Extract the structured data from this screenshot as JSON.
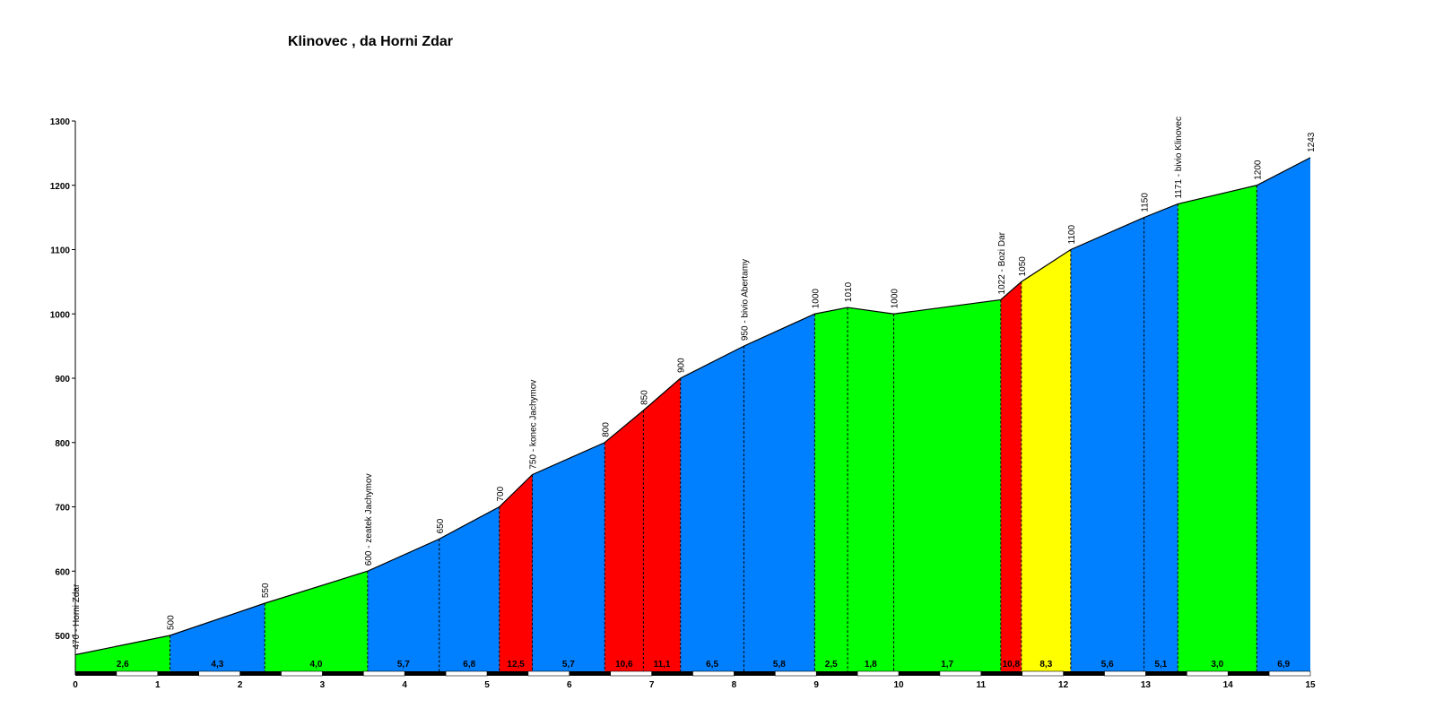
{
  "chart_data": {
    "type": "area",
    "title": "Klinovec , da Horni Zdar",
    "xlabel": "",
    "ylabel": "",
    "xlim": [
      0,
      15
    ],
    "ylim": [
      450,
      1300
    ],
    "x_ticks": [
      "0",
      "1",
      "2",
      "3",
      "4",
      "5",
      "6",
      "7",
      "8",
      "9",
      "10",
      "11",
      "12",
      "13",
      "14",
      "15"
    ],
    "y_ticks": [
      "500",
      "600",
      "700",
      "800",
      "900",
      "1000",
      "1100",
      "1200",
      "1300"
    ],
    "profile": [
      {
        "km": 0.0,
        "alt": 470,
        "label": "470 - Horni Zdar"
      },
      {
        "km": 1.15,
        "alt": 500,
        "label": "500"
      },
      {
        "km": 2.3,
        "alt": 550,
        "label": "550"
      },
      {
        "km": 3.55,
        "alt": 600,
        "label": "600 - zeatek Jachymov"
      },
      {
        "km": 4.42,
        "alt": 650,
        "label": "650"
      },
      {
        "km": 5.15,
        "alt": 700,
        "label": "700"
      },
      {
        "km": 5.55,
        "alt": 750,
        "label": "750 - konec Jachymov"
      },
      {
        "km": 6.43,
        "alt": 800,
        "label": "800"
      },
      {
        "km": 6.9,
        "alt": 850,
        "label": "850"
      },
      {
        "km": 7.35,
        "alt": 900,
        "label": "900"
      },
      {
        "km": 8.12,
        "alt": 950,
        "label": "950 - bivio Abertamy"
      },
      {
        "km": 8.98,
        "alt": 1000,
        "label": "1000"
      },
      {
        "km": 9.38,
        "alt": 1010,
        "label": "1010"
      },
      {
        "km": 9.94,
        "alt": 1000,
        "label": "1000"
      },
      {
        "km": 11.24,
        "alt": 1022,
        "label": "1022 - Bozi Dar"
      },
      {
        "km": 11.49,
        "alt": 1050,
        "label": "1050"
      },
      {
        "km": 12.09,
        "alt": 1100,
        "label": "1100"
      },
      {
        "km": 12.98,
        "alt": 1150,
        "label": "1150"
      },
      {
        "km": 13.39,
        "alt": 1171,
        "label": "1171 - bivio Klinovec"
      },
      {
        "km": 14.35,
        "alt": 1200,
        "label": "1200"
      },
      {
        "km": 15.0,
        "alt": 1243,
        "label": "1243"
      }
    ],
    "segments": [
      {
        "grade": "2,6",
        "color": "#00ff00"
      },
      {
        "grade": "4,3",
        "color": "#0080ff"
      },
      {
        "grade": "4,0",
        "color": "#00ff00"
      },
      {
        "grade": "5,7",
        "color": "#0080ff"
      },
      {
        "grade": "6,8",
        "color": "#0080ff"
      },
      {
        "grade": "12,5",
        "color": "#ff0000"
      },
      {
        "grade": "5,7",
        "color": "#0080ff"
      },
      {
        "grade": "10,6",
        "color": "#ff0000"
      },
      {
        "grade": "11,1",
        "color": "#ff0000"
      },
      {
        "grade": "6,5",
        "color": "#0080ff"
      },
      {
        "grade": "5,8",
        "color": "#0080ff"
      },
      {
        "grade": "2,5",
        "color": "#00ff00"
      },
      {
        "grade": "1,8",
        "color": "#00ff00"
      },
      {
        "grade": "1,7",
        "color": "#00ff00"
      },
      {
        "grade": "10,8",
        "color": "#ff0000"
      },
      {
        "grade": "8,3",
        "color": "#ffff00"
      },
      {
        "grade": "5,6",
        "color": "#0080ff"
      },
      {
        "grade": "5,1",
        "color": "#0080ff"
      },
      {
        "grade": "3,0",
        "color": "#00ff00"
      },
      {
        "grade": "6,9",
        "color": "#0080ff"
      }
    ]
  }
}
